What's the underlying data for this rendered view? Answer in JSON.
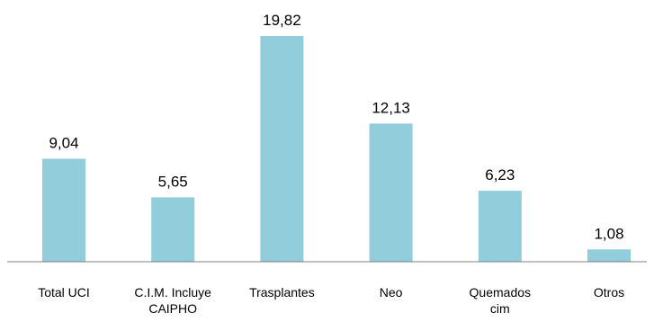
{
  "chart_data": {
    "type": "bar",
    "categories": [
      [
        "Total UCI"
      ],
      [
        "C.I.M. Incluye",
        "CAIPHO"
      ],
      [
        "Trasplantes"
      ],
      [
        "Neo"
      ],
      [
        "Quemados",
        "cim"
      ],
      [
        "Otros"
      ]
    ],
    "values": [
      9.04,
      5.65,
      19.82,
      12.13,
      6.23,
      1.08
    ],
    "value_labels": [
      "9,04",
      "5,65",
      "19,82",
      "12,13",
      "6,23",
      "1,08"
    ],
    "title": "",
    "xlabel": "",
    "ylabel": "",
    "ylim": [
      0,
      19.82
    ],
    "grid": false,
    "legend": "none",
    "colors": {
      "bar": "#92CDDC",
      "axis": "#808080",
      "text": "#000000"
    }
  }
}
